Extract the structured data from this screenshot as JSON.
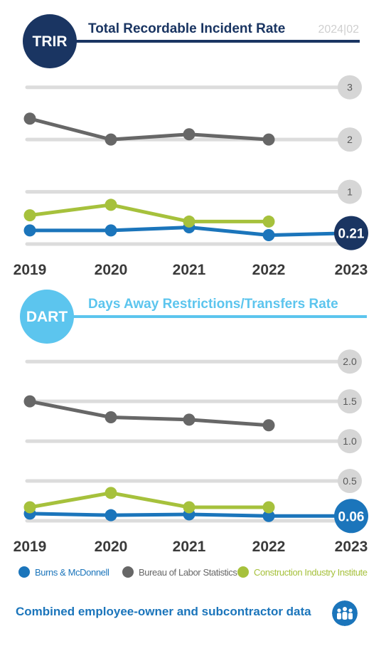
{
  "colors": {
    "navy": "#1a3562",
    "light_blue": "#5cc5ee",
    "burns": "#1b75bb",
    "bls": "#676767",
    "cii": "#a6c13c",
    "grid": "#dcdcdc",
    "tick_bubble": "#d6d6d6",
    "tick_text": "#5a5a5a",
    "year_text": "#3a3a3a"
  },
  "header_trir": {
    "badge": "TRIR",
    "title": "Total Recordable Incident Rate",
    "issue": "2024|02"
  },
  "header_dart": {
    "badge": "DART",
    "title": "Days Away Restrictions/Transfers Rate"
  },
  "chart_data": [
    {
      "type": "line",
      "title": "Total Recordable Incident Rate",
      "badge": "TRIR",
      "categories": [
        "2019",
        "2020",
        "2021",
        "2022",
        "2023"
      ],
      "y_ticks": [
        "3",
        "2",
        "1"
      ],
      "y_tick_values": [
        3,
        2,
        1
      ],
      "ylim": [
        0,
        3.2
      ],
      "grid": true,
      "series": [
        {
          "name": "Burns & McDonnell",
          "values": [
            0.26,
            0.26,
            0.32,
            0.17,
            0.21
          ]
        },
        {
          "name": "Bureau of Labor Statistics",
          "values": [
            2.4,
            2.0,
            2.1,
            2.0,
            null
          ]
        },
        {
          "name": "Construction Industry Institute",
          "values": [
            0.55,
            0.75,
            0.43,
            0.43,
            null
          ]
        }
      ],
      "highlight_label": "0.21"
    },
    {
      "type": "line",
      "title": "Days Away Restrictions/Transfers Rate",
      "badge": "DART",
      "categories": [
        "2019",
        "2020",
        "2021",
        "2022",
        "2023"
      ],
      "y_ticks": [
        "2.0",
        "1.5",
        "1.0",
        "0.5"
      ],
      "y_tick_values": [
        2.0,
        1.5,
        1.0,
        0.5
      ],
      "ylim": [
        0,
        2.1
      ],
      "grid": true,
      "series": [
        {
          "name": "Burns & McDonnell",
          "values": [
            0.09,
            0.07,
            0.08,
            0.06,
            0.06
          ]
        },
        {
          "name": "Bureau of Labor Statistics",
          "values": [
            1.5,
            1.3,
            1.27,
            1.2,
            null
          ]
        },
        {
          "name": "Construction Industry Institute",
          "values": [
            0.17,
            0.35,
            0.17,
            0.17,
            null
          ]
        }
      ],
      "highlight_label": "0.06"
    }
  ],
  "legend": [
    {
      "label": "Burns & McDonnell",
      "color": "#1b75bb"
    },
    {
      "label": "Bureau of Labor Statistics",
      "color": "#676767"
    },
    {
      "label": "Construction Industry Institute",
      "color": "#a6c13c"
    }
  ],
  "footer": {
    "text": "Combined employee-owner and subcontractor data",
    "icon": "people-group-icon"
  }
}
